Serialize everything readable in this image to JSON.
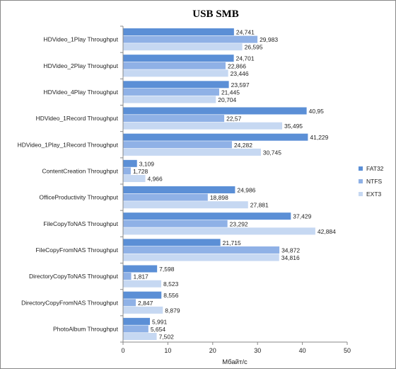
{
  "chart_data": {
    "type": "bar",
    "orientation": "horizontal",
    "title": "USB SMB",
    "xlabel": "Мбайт/с",
    "xlim": [
      0,
      50
    ],
    "xticks": [
      0,
      10,
      20,
      30,
      40,
      50
    ],
    "grid": false,
    "legend_position": "right",
    "categories": [
      "HDVideo_1Play Throughput",
      "HDVideo_2Play Throughput",
      "HDVideo_4Play Throughput",
      "HDVideo_1Record Throughput",
      "HDVideo_1Play_1Record Throughput",
      "ContentCreation Throughput",
      "OfficeProductivity Throughput",
      "FileCopyToNAS Throughput",
      "FileCopyFromNAS Throughput",
      "DirectoryCopyToNAS Throughput",
      "DirectoryCopyFromNAS Throughput",
      "PhotoAlbum Throughput"
    ],
    "series": [
      {
        "name": "FAT32",
        "color": "#5b8fd6",
        "values": [
          24.741,
          24.701,
          23.597,
          40.95,
          41.229,
          3.109,
          24.986,
          37.429,
          21.715,
          7.598,
          8.556,
          5.991
        ],
        "labels": [
          "24,741",
          "24,701",
          "23,597",
          "40,95",
          "41,229",
          "3,109",
          "24,986",
          "37,429",
          "21,715",
          "7,598",
          "8,556",
          "5,991"
        ]
      },
      {
        "name": "NTFS",
        "color": "#8fb1e6",
        "values": [
          29.983,
          22.866,
          21.445,
          22.57,
          24.282,
          1.728,
          18.898,
          23.292,
          34.872,
          1.817,
          2.847,
          5.654
        ],
        "labels": [
          "29,983",
          "22,866",
          "21,445",
          "22,57",
          "24,282",
          "1,728",
          "18,898",
          "23,292",
          "34,872",
          "1,817",
          "2,847",
          "5,654"
        ]
      },
      {
        "name": "EXT3",
        "color": "#c6d8f2",
        "values": [
          26.595,
          23.446,
          20.704,
          35.495,
          30.745,
          4.966,
          27.881,
          42.884,
          34.816,
          8.523,
          8.879,
          7.502
        ],
        "labels": [
          "26,595",
          "23,446",
          "20,704",
          "35,495",
          "30,745",
          "4,966",
          "27,881",
          "42,884",
          "34,816",
          "8,523",
          "8,879",
          "7,502"
        ]
      }
    ]
  }
}
